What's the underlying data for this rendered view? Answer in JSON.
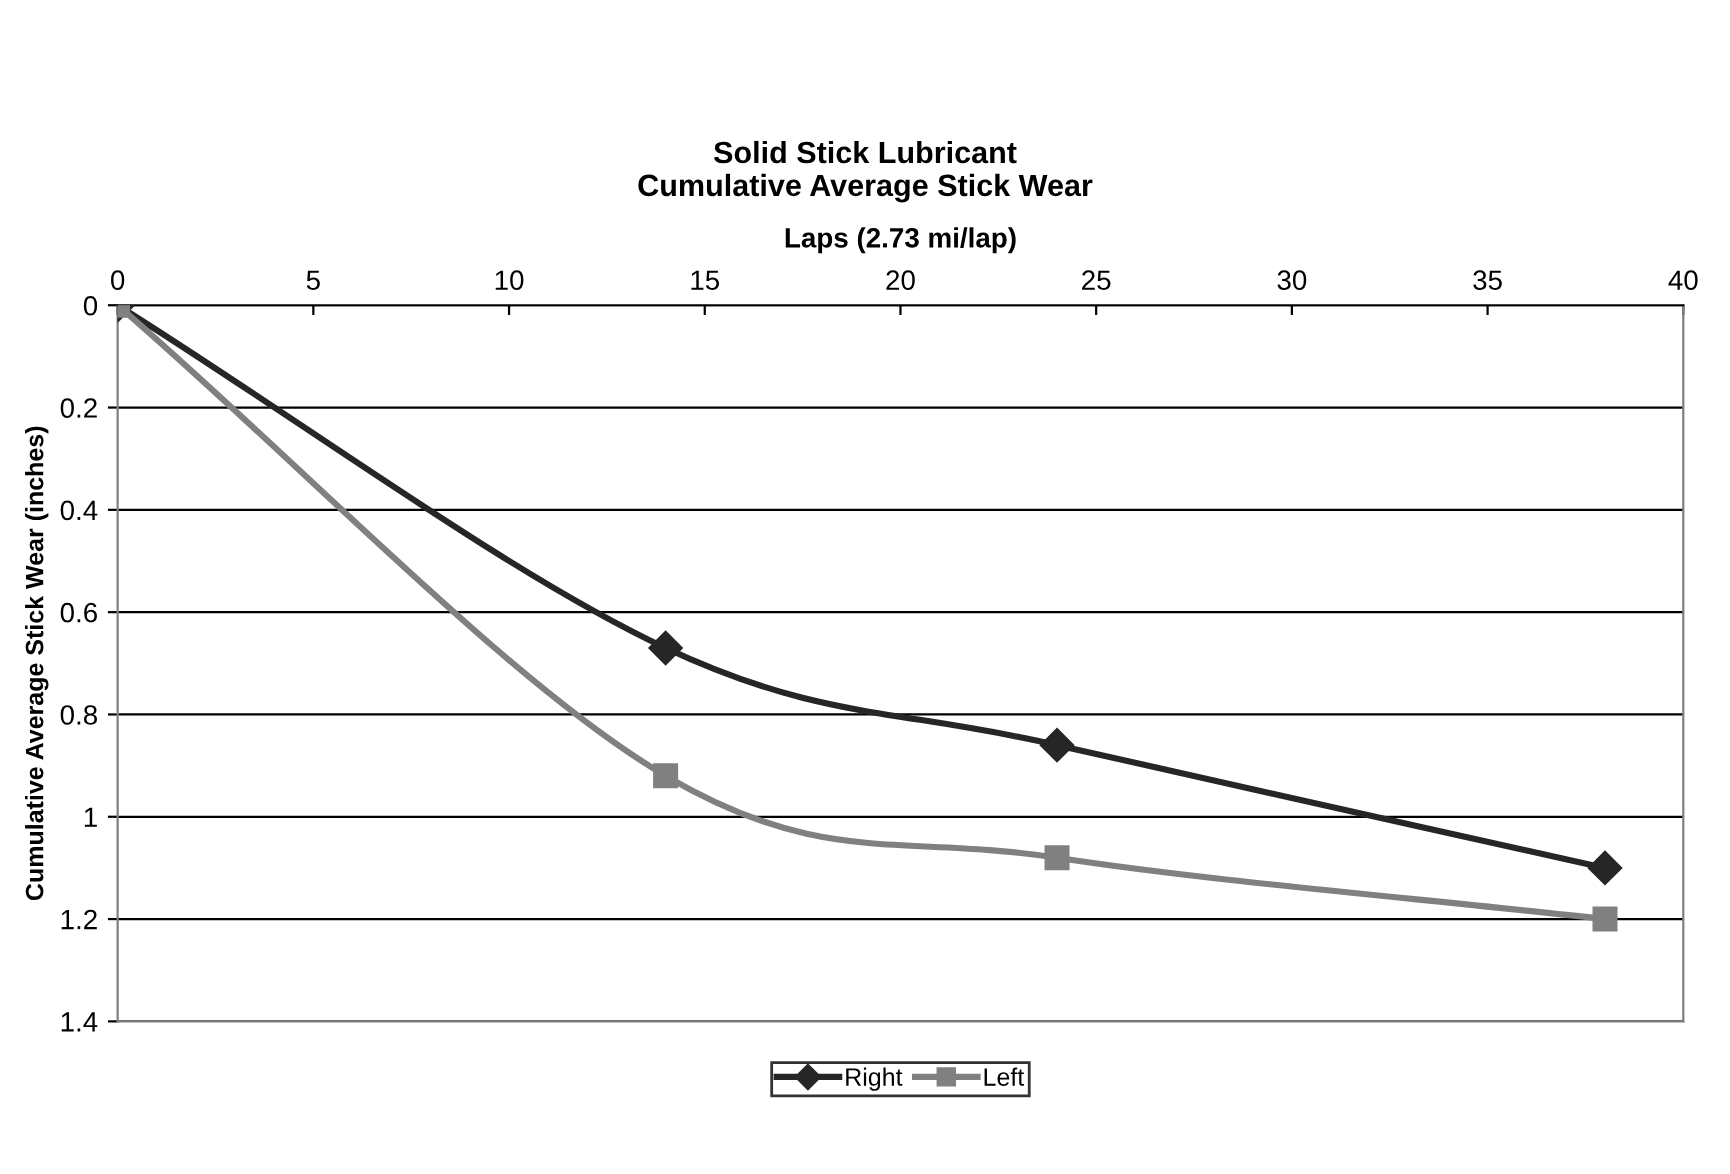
{
  "chart_data": {
    "type": "line",
    "title": "Solid Stick Lubricant\nCumulative Average Stick Wear",
    "xlabel": "Laps (2.73 mi/lap)",
    "ylabel": "Cumulative Average Stick Wear (inches)",
    "x": [
      0,
      14,
      24,
      38
    ],
    "series": [
      {
        "name": "Right",
        "color": "#262626",
        "marker": "diamond",
        "values": [
          0,
          0.67,
          0.86,
          1.1
        ]
      },
      {
        "name": "Left",
        "color": "#808080",
        "marker": "square",
        "values": [
          0,
          0.92,
          1.08,
          1.2
        ]
      }
    ],
    "xlim": [
      0,
      40
    ],
    "xticks": [
      0,
      5,
      10,
      15,
      20,
      25,
      30,
      35,
      40
    ],
    "ylim": [
      1.4,
      0
    ],
    "yticks": [
      0,
      0.2,
      0.4,
      0.6,
      0.8,
      1,
      1.2,
      1.4
    ],
    "grid": "y",
    "legend": "bottom",
    "line_style": "solid"
  }
}
